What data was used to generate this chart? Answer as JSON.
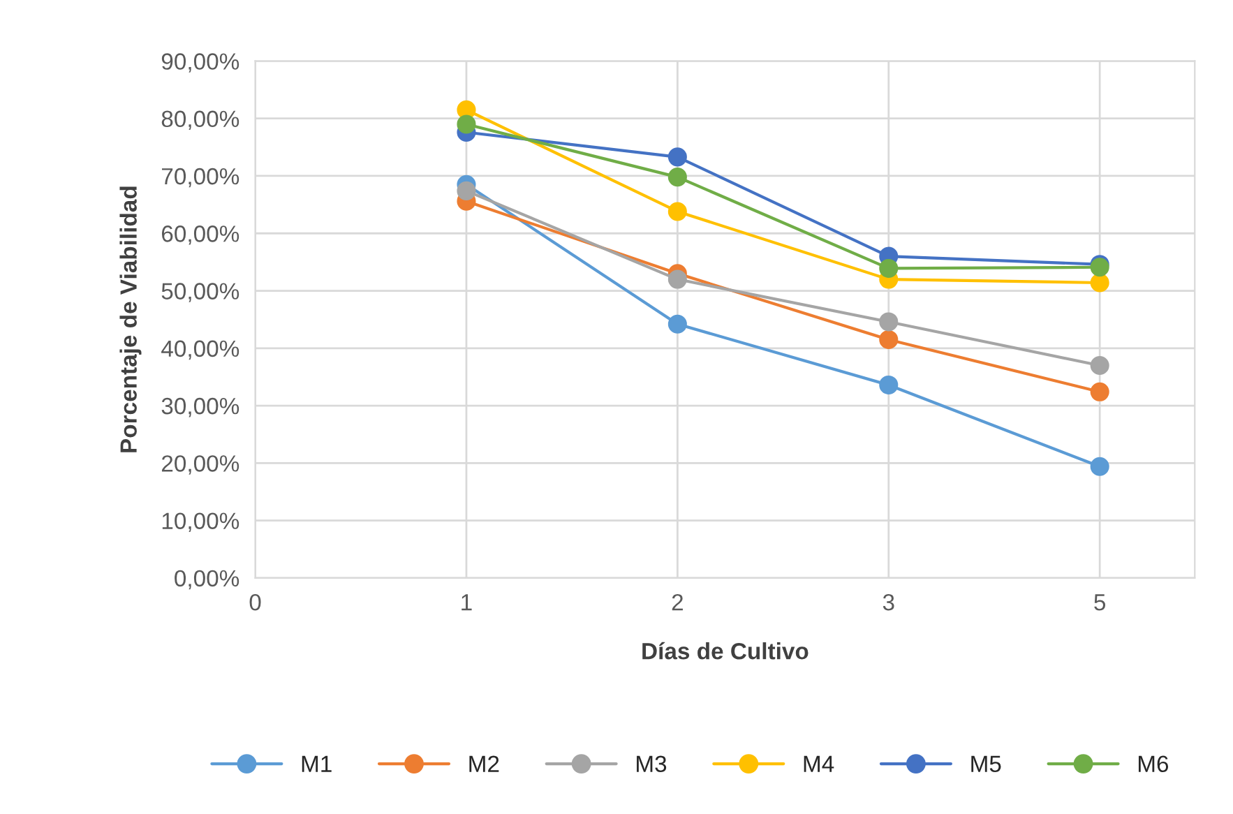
{
  "chart_data": {
    "type": "line",
    "xlabel": "Días de Cultivo",
    "ylabel": "Porcentaje de Viabilidad",
    "categories": [
      "0",
      "1",
      "2",
      "3",
      "5"
    ],
    "series": [
      {
        "name": "M1",
        "color": "#5b9bd5",
        "values": [
          null,
          68.5,
          44.2,
          33.6,
          19.4
        ]
      },
      {
        "name": "M2",
        "color": "#ed7d31",
        "values": [
          null,
          65.6,
          53.0,
          41.5,
          32.4
        ]
      },
      {
        "name": "M3",
        "color": "#a5a5a5",
        "values": [
          null,
          67.4,
          52.0,
          44.6,
          37.0
        ]
      },
      {
        "name": "M4",
        "color": "#ffc000",
        "values": [
          null,
          81.5,
          63.8,
          52.0,
          51.4
        ]
      },
      {
        "name": "M5",
        "color": "#4472c4",
        "values": [
          null,
          77.6,
          73.3,
          56.0,
          54.6
        ]
      },
      {
        "name": "M6",
        "color": "#70ad47",
        "values": [
          null,
          79.0,
          69.8,
          53.9,
          54.1
        ]
      }
    ],
    "ylim": [
      0,
      90
    ],
    "yticks": [
      {
        "value": 0,
        "label": "0,00%"
      },
      {
        "value": 10,
        "label": "10,00%"
      },
      {
        "value": 20,
        "label": "20,00%"
      },
      {
        "value": 30,
        "label": "30,00%"
      },
      {
        "value": 40,
        "label": "40,00%"
      },
      {
        "value": 50,
        "label": "50,00%"
      },
      {
        "value": 60,
        "label": "60,00%"
      },
      {
        "value": 70,
        "label": "70,00%"
      },
      {
        "value": 80,
        "label": "80,00%"
      },
      {
        "value": 90,
        "label": "90,00%"
      }
    ],
    "grid": true,
    "legend": "bottom",
    "marker": "circle",
    "line_style": "solid"
  }
}
